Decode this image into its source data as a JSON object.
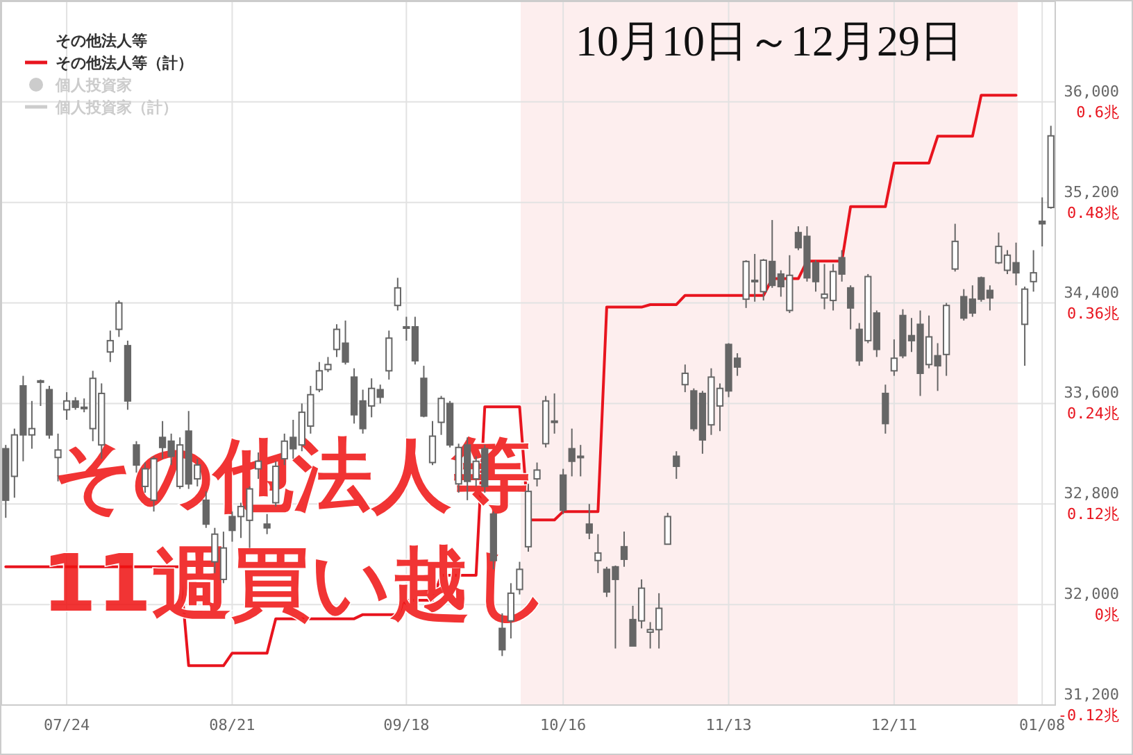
{
  "chart_data": {
    "type": "candlestick",
    "color": "#666666",
    "categories": [
      null,
      null,
      null,
      null,
      null,
      null,
      null,
      "07/24",
      null,
      null,
      null,
      null,
      null,
      null,
      null,
      null,
      null,
      null,
      null,
      null,
      null,
      null,
      null,
      null,
      null,
      null,
      "08/21",
      null,
      null,
      null,
      null,
      null,
      null,
      null,
      null,
      null,
      null,
      null,
      null,
      null,
      null,
      null,
      null,
      null,
      null,
      null,
      "09/18",
      null,
      null,
      null,
      null,
      null,
      null,
      null,
      null,
      null,
      null,
      null,
      null,
      null,
      null,
      null,
      null,
      null,
      "10/16",
      null,
      null,
      null,
      null,
      null,
      null,
      null,
      null,
      null,
      null,
      null,
      null,
      null,
      null,
      null,
      null,
      null,
      null,
      "11/13",
      null,
      null,
      null,
      null,
      null,
      null,
      null,
      null,
      null,
      null,
      null,
      null,
      null,
      null,
      null,
      null,
      null,
      null,
      "12/11",
      null,
      null,
      null,
      null,
      null,
      null,
      null,
      null,
      null,
      null,
      null,
      null,
      null,
      null,
      null,
      null,
      "01/08",
      null
    ],
    "ohlc": [
      [
        33240,
        33270,
        32690,
        32830
      ],
      [
        33020,
        33400,
        32850,
        33350
      ],
      [
        33740,
        33820,
        33140,
        33350
      ],
      [
        33350,
        33620,
        33240,
        33400
      ],
      [
        33770,
        33790,
        33580,
        33780
      ],
      [
        33710,
        33740,
        33320,
        33350
      ],
      [
        33170,
        33360,
        32980,
        33230
      ],
      [
        33550,
        33690,
        33470,
        33620
      ],
      [
        33620,
        33650,
        33550,
        33570
      ],
      [
        33570,
        33640,
        33530,
        33560
      ],
      [
        33400,
        33860,
        33300,
        33800
      ],
      [
        33270,
        33760,
        33160,
        33680
      ],
      [
        34010,
        34180,
        33930,
        34100
      ],
      [
        34190,
        34420,
        34130,
        34400
      ],
      [
        34060,
        34100,
        33550,
        33620
      ],
      [
        33270,
        33300,
        33050,
        33110
      ],
      [
        32940,
        33130,
        32890,
        33080
      ],
      [
        32830,
        33180,
        32740,
        33160
      ],
      [
        33330,
        33460,
        33160,
        33250
      ],
      [
        33300,
        33360,
        33110,
        33180
      ],
      [
        32940,
        33330,
        32920,
        33270
      ],
      [
        33380,
        33540,
        32920,
        32960
      ],
      [
        33000,
        33160,
        32940,
        33110
      ],
      [
        32830,
        32900,
        32610,
        32640
      ],
      [
        32340,
        32610,
        32250,
        32560
      ],
      [
        32200,
        32580,
        32170,
        32450
      ],
      [
        32700,
        32740,
        32500,
        32590
      ],
      [
        32700,
        32810,
        32530,
        32780
      ],
      [
        32670,
        32940,
        32450,
        32920
      ],
      [
        33080,
        33210,
        33000,
        33140
      ],
      [
        32640,
        32720,
        32560,
        32610
      ],
      [
        32810,
        33140,
        32780,
        33100
      ],
      [
        33160,
        33360,
        33110,
        33300
      ],
      [
        33330,
        33470,
        33160,
        33240
      ],
      [
        33270,
        33600,
        33220,
        33530
      ],
      [
        33420,
        33740,
        33360,
        33670
      ],
      [
        33710,
        33930,
        33690,
        33860
      ],
      [
        33870,
        33970,
        33850,
        33910
      ],
      [
        34030,
        34230,
        33970,
        34190
      ],
      [
        34080,
        34260,
        33910,
        33930
      ],
      [
        33810,
        33880,
        33440,
        33510
      ],
      [
        33620,
        33710,
        33360,
        33400
      ],
      [
        33580,
        33800,
        33490,
        33720
      ],
      [
        33710,
        33750,
        33600,
        33650
      ],
      [
        33860,
        34180,
        33790,
        34120
      ],
      [
        34380,
        34600,
        34340,
        34520
      ],
      [
        34200,
        34290,
        34100,
        34210
      ],
      [
        34210,
        34290,
        33910,
        33940
      ],
      [
        33800,
        33900,
        33490,
        33500
      ],
      [
        33130,
        33460,
        33110,
        33340
      ],
      [
        33450,
        33660,
        33350,
        33640
      ],
      [
        33600,
        33620,
        33250,
        33270
      ],
      [
        32960,
        33280,
        32890,
        33250
      ],
      [
        33270,
        33330,
        32830,
        32980
      ],
      [
        33000,
        33180,
        32940,
        33140
      ],
      [
        33240,
        33270,
        32890,
        32940
      ],
      [
        32720,
        32740,
        32280,
        32350
      ],
      [
        31810,
        31930,
        31590,
        31640
      ],
      [
        31870,
        32170,
        31730,
        32090
      ],
      [
        32120,
        32340,
        32080,
        32280
      ],
      [
        32460,
        32960,
        32420,
        32900
      ],
      [
        33000,
        33130,
        32940,
        33070
      ],
      [
        33280,
        33660,
        33250,
        33620
      ],
      [
        33460,
        33680,
        33360,
        33450
      ],
      [
        33030,
        33080,
        32720,
        32750
      ],
      [
        33240,
        33400,
        33020,
        33140
      ],
      [
        33180,
        33270,
        33020,
        33170
      ],
      [
        32640,
        32800,
        32520,
        32570
      ],
      [
        32350,
        32560,
        32250,
        32410
      ],
      [
        32280,
        32300,
        32060,
        32100
      ],
      [
        32300,
        32310,
        31650,
        32200
      ],
      [
        32460,
        32580,
        32300,
        32360
      ],
      [
        31880,
        31990,
        31670,
        31670
      ],
      [
        31870,
        32200,
        31810,
        32130
      ],
      [
        31780,
        31860,
        31650,
        31800
      ],
      [
        31800,
        32090,
        31650,
        31970
      ],
      [
        32480,
        32730,
        32480,
        32700
      ],
      [
        33180,
        33220,
        33000,
        33100
      ],
      [
        33750,
        33910,
        33690,
        33840
      ],
      [
        33700,
        33720,
        33380,
        33400
      ],
      [
        33680,
        33700,
        33200,
        33310
      ],
      [
        33430,
        33880,
        33350,
        33810
      ],
      [
        33580,
        33760,
        33380,
        33720
      ],
      [
        34070,
        34080,
        33650,
        33700
      ],
      [
        33960,
        34000,
        33820,
        33890
      ],
      [
        34430,
        34740,
        34360,
        34730
      ],
      [
        34570,
        34790,
        34410,
        34580
      ],
      [
        34490,
        34750,
        34420,
        34740
      ],
      [
        34730,
        35060,
        34520,
        34540
      ],
      [
        34630,
        34660,
        34450,
        34530
      ],
      [
        34340,
        34780,
        34320,
        34620
      ],
      [
        34960,
        35010,
        34820,
        34840
      ],
      [
        34930,
        35010,
        34570,
        34600
      ],
      [
        34720,
        34740,
        34490,
        34570
      ],
      [
        34440,
        34710,
        34350,
        34470
      ],
      [
        34420,
        34710,
        34340,
        34650
      ],
      [
        34760,
        34820,
        34570,
        34630
      ],
      [
        34520,
        34540,
        34190,
        34360
      ],
      [
        34190,
        34240,
        33900,
        33940
      ],
      [
        34100,
        34630,
        34080,
        34610
      ],
      [
        34320,
        34340,
        33970,
        34030
      ],
      [
        33680,
        33750,
        33360,
        33440
      ],
      [
        33860,
        34110,
        33820,
        33960
      ],
      [
        34300,
        34350,
        33960,
        33980
      ],
      [
        34140,
        34280,
        34010,
        34100
      ],
      [
        34230,
        34340,
        33660,
        33840
      ],
      [
        33910,
        34300,
        33880,
        34130
      ],
      [
        33980,
        34080,
        33700,
        33900
      ],
      [
        33990,
        34400,
        33820,
        34380
      ],
      [
        34670,
        35030,
        34650,
        34890
      ],
      [
        34450,
        34510,
        34260,
        34280
      ],
      [
        34430,
        34540,
        34290,
        34320
      ],
      [
        34600,
        34610,
        34410,
        34430
      ],
      [
        34500,
        34540,
        34340,
        34440
      ],
      [
        34720,
        34960,
        34710,
        34850
      ],
      [
        34660,
        34820,
        34630,
        34780
      ],
      [
        34720,
        34880,
        34540,
        34640
      ],
      [
        34230,
        34530,
        33900,
        34510
      ],
      [
        34570,
        34820,
        34490,
        34640
      ],
      [
        35050,
        35240,
        34850,
        35030
      ],
      [
        35160,
        35810,
        35150,
        35730
      ]
    ],
    "series": [
      {
        "name": "その他法人等（計）",
        "type": "line",
        "axis": "y2",
        "color": "#e8141e",
        "values": [
          0.045,
          0.045,
          0.045,
          0.045,
          0.045,
          0.045,
          0.045,
          0.045,
          0.045,
          0.045,
          0.045,
          0.045,
          0.045,
          0.045,
          0.045,
          0.045,
          0.045,
          0.045,
          0.045,
          0.045,
          0.045,
          -0.073,
          -0.073,
          -0.073,
          -0.073,
          -0.073,
          -0.058,
          -0.058,
          -0.058,
          -0.058,
          -0.058,
          -0.017,
          -0.017,
          -0.017,
          -0.017,
          -0.017,
          -0.017,
          -0.017,
          -0.017,
          -0.017,
          -0.017,
          -0.012,
          -0.012,
          -0.012,
          -0.012,
          -0.012,
          0.005,
          0.005,
          0.005,
          0.005,
          0.035,
          0.035,
          0.035,
          0.035,
          0.035,
          0.236,
          0.236,
          0.236,
          0.236,
          0.236,
          0.101,
          0.101,
          0.101,
          0.101,
          0.111,
          0.111,
          0.111,
          0.111,
          0.111,
          0.355,
          0.355,
          0.355,
          0.355,
          0.355,
          0.358,
          0.358,
          0.358,
          0.358,
          0.369,
          0.369,
          0.369,
          0.369,
          0.369,
          0.369,
          0.369,
          0.369,
          0.369,
          0.369,
          0.389,
          0.389,
          0.389,
          0.389,
          0.41,
          0.41,
          0.41,
          0.41,
          0.41,
          0.475,
          0.475,
          0.475,
          0.475,
          0.475,
          0.527,
          0.527,
          0.527,
          0.527,
          0.527,
          0.559,
          0.559,
          0.559,
          0.559,
          0.559,
          0.608,
          0.608,
          0.608,
          0.608,
          0.608,
          null,
          null,
          null,
          null
        ]
      },
      {
        "name": "個人投資家",
        "type": "scatter",
        "color": "#cccccc",
        "values": [
          null,
          null,
          null,
          null,
          null,
          null,
          null,
          null,
          null,
          null,
          null,
          null,
          null,
          null,
          null,
          null,
          null,
          null,
          null,
          null,
          null,
          null,
          null,
          null,
          null,
          null,
          null,
          null,
          null,
          null,
          null,
          null,
          null,
          null,
          null,
          null,
          null,
          null,
          null,
          null,
          null,
          null,
          null,
          null,
          null,
          null,
          null,
          null,
          null,
          null,
          null,
          null,
          null,
          null,
          null,
          null,
          null,
          null,
          null,
          null,
          null,
          null,
          null,
          null,
          null,
          null,
          null,
          null,
          null,
          null,
          null,
          null,
          null,
          null,
          null,
          null,
          null,
          null,
          null,
          null,
          null,
          null,
          null,
          null,
          null,
          null,
          null,
          null,
          null,
          null,
          null,
          null,
          null,
          null,
          null,
          null,
          null,
          null,
          null,
          null,
          null,
          null,
          null,
          null,
          null,
          null,
          null,
          null,
          null,
          null,
          null,
          null,
          null,
          null,
          null,
          null,
          null,
          null,
          null,
          null,
          null
        ]
      },
      {
        "name": "個人投資家（計）",
        "type": "line",
        "color": "#cccccc",
        "values": [
          null,
          null,
          null,
          null,
          null,
          null,
          null,
          null,
          null,
          null,
          null,
          null,
          null,
          null,
          null,
          null,
          null,
          null,
          null,
          null,
          null,
          null,
          null,
          null,
          null,
          null,
          null,
          null,
          null,
          null,
          null,
          null,
          null,
          null,
          null,
          null,
          null,
          null,
          null,
          null,
          null,
          null,
          null,
          null,
          null,
          null,
          null,
          null,
          null,
          null,
          null,
          null,
          null,
          null,
          null,
          null,
          null,
          null,
          null,
          null,
          null,
          null,
          null,
          null,
          null,
          null,
          null,
          null,
          null,
          null,
          null,
          null,
          null,
          null,
          null,
          null,
          null,
          null,
          null,
          null,
          null,
          null,
          null,
          null,
          null,
          null,
          null,
          null,
          null,
          null,
          null,
          null,
          null,
          null,
          null,
          null,
          null,
          null,
          null,
          null,
          null,
          null,
          null,
          null,
          null,
          null,
          null,
          null,
          null,
          null,
          null,
          null,
          null,
          null,
          null,
          null,
          null,
          null,
          null,
          null,
          null
        ]
      }
    ],
    "ylim": [
      31200,
      36800
    ],
    "yticks": [
      {
        "value": 31200,
        "label": "31,200"
      },
      {
        "value": 32000,
        "label": "32,000"
      },
      {
        "value": 32800,
        "label": "32,800"
      },
      {
        "value": 33600,
        "label": "33,600"
      },
      {
        "value": 34400,
        "label": "34,400"
      },
      {
        "value": 35200,
        "label": "35,200"
      },
      {
        "value": 36000,
        "label": "36,000"
      }
    ],
    "y2lim": [
      -0.12,
      0.72
    ],
    "y2ticks": [
      {
        "value": -0.12,
        "label": "-0.12兆"
      },
      {
        "value": 0,
        "label": "0兆"
      },
      {
        "value": 0.12,
        "label": "0.12兆"
      },
      {
        "value": 0.24,
        "label": "0.24兆"
      },
      {
        "value": 0.36,
        "label": "0.36兆"
      },
      {
        "value": 0.48,
        "label": "0.48兆"
      },
      {
        "value": 0.6,
        "label": "0.6兆"
      }
    ],
    "legend_title": "その他法人等",
    "annotations": [
      "10月10日～12月29日",
      "その他法人等",
      "11週買い越し"
    ],
    "grid": true,
    "legend": "top left"
  }
}
